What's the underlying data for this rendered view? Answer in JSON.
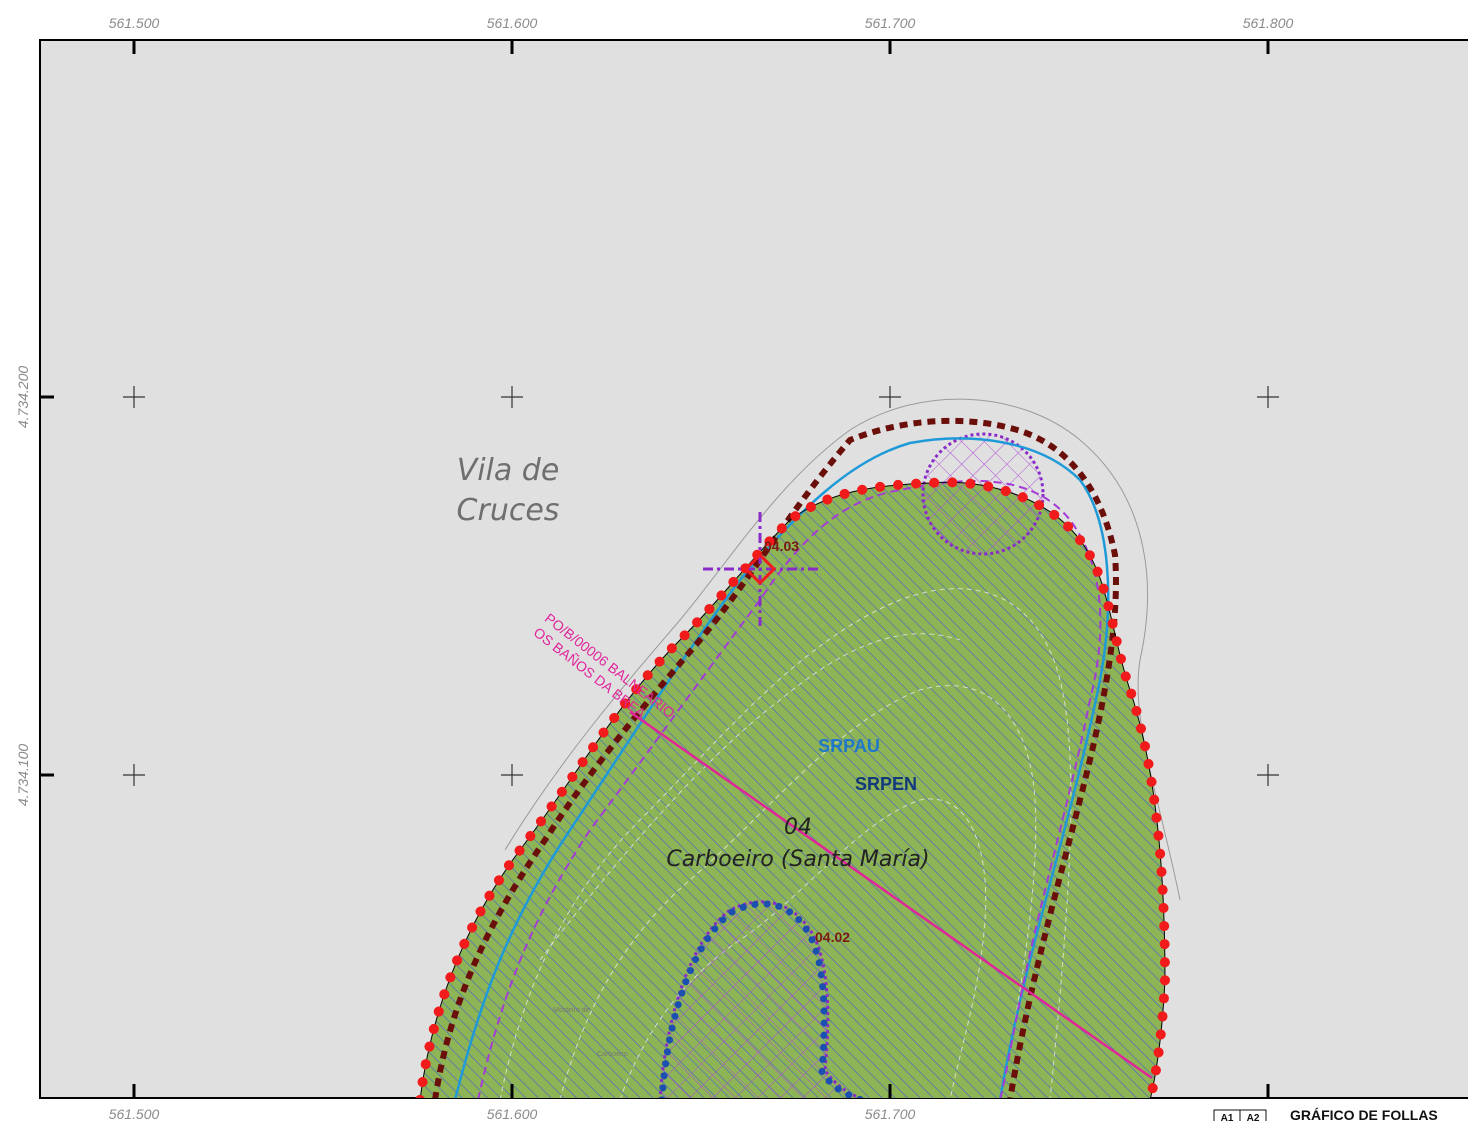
{
  "map": {
    "easting_ticks": [
      "561.500",
      "561.600",
      "561.700",
      "561.800"
    ],
    "northing_ticks": [
      "4.734.200",
      "4.734.100"
    ],
    "place_name": [
      "Vila de",
      "Cruces"
    ],
    "zone_labels": {
      "srpau": "SRPAU",
      "srpen": "SRPEN"
    },
    "parish": {
      "number": "04",
      "name": "Carboeiro (Santa María)"
    },
    "subzones": {
      "a": "04.03",
      "b": "04.02"
    },
    "heritage_label": [
      "PO/B/00006 BALNEARIO",
      "OS BAÑOS DA BREA"
    ],
    "faint_labels": [
      "Mosteiro de",
      "Carboeiro"
    ],
    "legend": {
      "title": "GRÁFICO DE FOLLAS",
      "sheets": [
        "A1",
        "A2"
      ]
    },
    "colors": {
      "background": "#e0e0e0",
      "land_fill": "#8db455",
      "hatch": "#4a66c8",
      "srpau": "#1f78c8",
      "srpen": "#123a7a",
      "red_dots": "#f21b1b",
      "brown_dash": "#6b0f0a",
      "purple": "#8a2bc9",
      "magenta_line": "#e0259b",
      "cyan_line": "#1f9ad8"
    }
  }
}
